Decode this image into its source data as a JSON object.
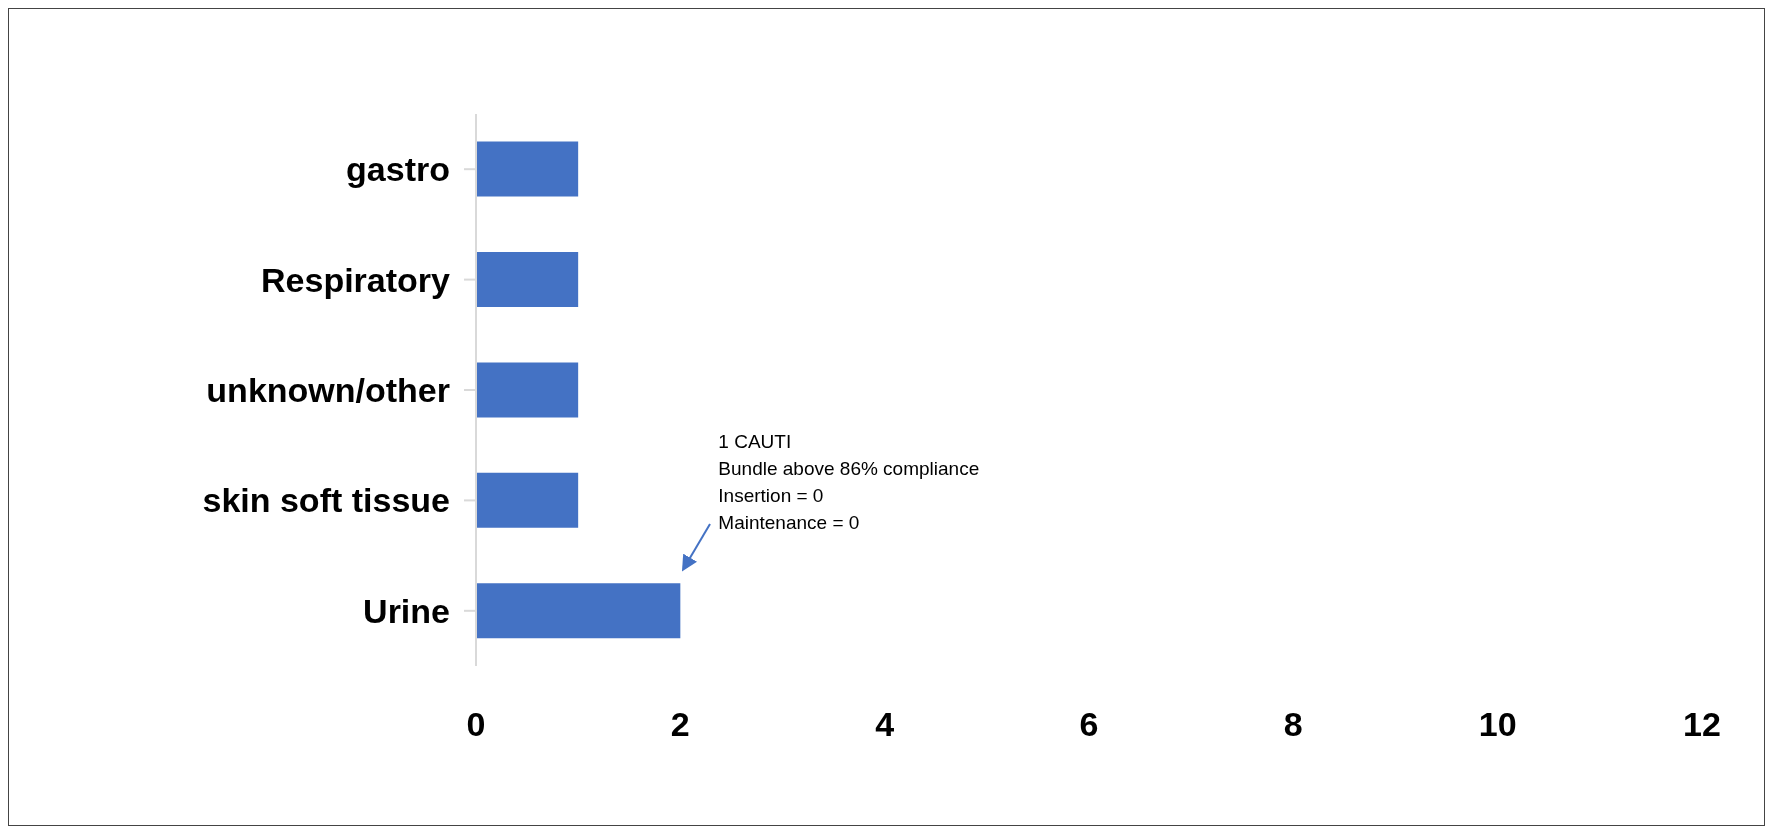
{
  "chart_data": {
    "type": "bar",
    "orientation": "horizontal",
    "categories": [
      "gastro",
      "Respiratory",
      "unknown/other",
      "skin soft tissue",
      "Urine"
    ],
    "values": [
      1,
      1,
      1,
      1,
      2
    ],
    "color": "#4472c4",
    "xlim": [
      0,
      12
    ],
    "xticks": [
      0,
      2,
      4,
      6,
      8,
      10,
      12
    ],
    "annotations": [
      "1 CAUTI\nBundle above 86% compliance\nInsertion = 0\nMaintenance = 0"
    ]
  }
}
